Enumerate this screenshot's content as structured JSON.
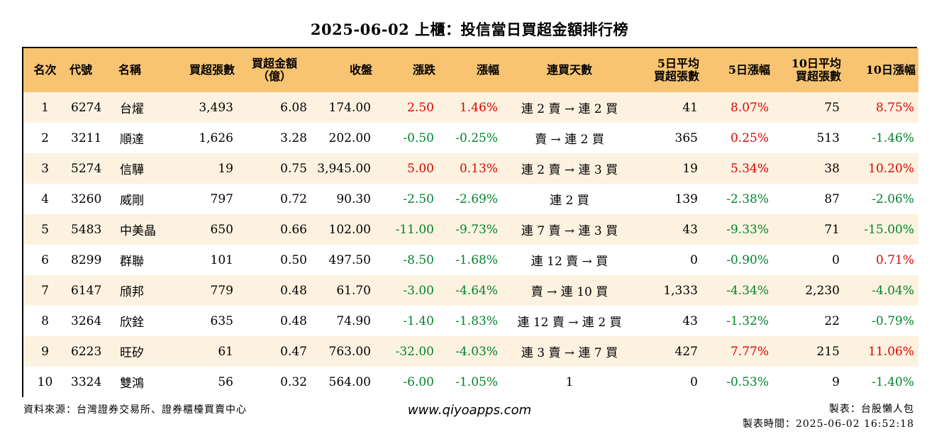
{
  "title": "2025-06-02 上櫃：投信當日買超金額排行榜",
  "headers": {
    "rank": "名次",
    "code": "代號",
    "name": "名稱",
    "net_shares": "買超張數",
    "net_amount_1": "買超金額",
    "net_amount_2": "（億）",
    "close": "收盤",
    "change": "漲跌",
    "pct": "漲幅",
    "streak": "連買天數",
    "avg5_1": "5日平均",
    "avg5_2": "買超張數",
    "pct5": "5日漲幅",
    "avg10_1": "10日平均",
    "avg10_2": "買超張數",
    "pct10": "10日漲幅"
  },
  "colors": {
    "header_bg": "#f8c471",
    "odd_row_bg": "#fdf2e0",
    "up": "#e00000",
    "down": "#00852d"
  },
  "rows": [
    {
      "rank": "1",
      "code": "6274",
      "name": "台燿",
      "shares": "3,493",
      "amount": "6.08",
      "close": "174.00",
      "change": "2.50",
      "pct": "1.46%",
      "streak": "連 2 賣 → 連 2 買",
      "avg5": "41",
      "pct5": "8.07%",
      "avg10": "75",
      "pct10": "8.75%"
    },
    {
      "rank": "2",
      "code": "3211",
      "name": "順達",
      "shares": "1,626",
      "amount": "3.28",
      "close": "202.00",
      "change": "-0.50",
      "pct": "-0.25%",
      "streak": "賣 → 連 2 買",
      "avg5": "365",
      "pct5": "0.25%",
      "avg10": "513",
      "pct10": "-1.46%"
    },
    {
      "rank": "3",
      "code": "5274",
      "name": "信驊",
      "shares": "19",
      "amount": "0.75",
      "close": "3,945.00",
      "change": "5.00",
      "pct": "0.13%",
      "streak": "連 2 賣 → 連 3 買",
      "avg5": "19",
      "pct5": "5.34%",
      "avg10": "38",
      "pct10": "10.20%"
    },
    {
      "rank": "4",
      "code": "3260",
      "name": "威剛",
      "shares": "797",
      "amount": "0.72",
      "close": "90.30",
      "change": "-2.50",
      "pct": "-2.69%",
      "streak": "連 2 買",
      "avg5": "139",
      "pct5": "-2.38%",
      "avg10": "87",
      "pct10": "-2.06%"
    },
    {
      "rank": "5",
      "code": "5483",
      "name": "中美晶",
      "shares": "650",
      "amount": "0.66",
      "close": "102.00",
      "change": "-11.00",
      "pct": "-9.73%",
      "streak": "連 7 賣 → 連 3 買",
      "avg5": "43",
      "pct5": "-9.33%",
      "avg10": "71",
      "pct10": "-15.00%"
    },
    {
      "rank": "6",
      "code": "8299",
      "name": "群聯",
      "shares": "101",
      "amount": "0.50",
      "close": "497.50",
      "change": "-8.50",
      "pct": "-1.68%",
      "streak": "連 12 賣 → 買",
      "avg5": "0",
      "pct5": "-0.90%",
      "avg10": "0",
      "pct10": "0.71%"
    },
    {
      "rank": "7",
      "code": "6147",
      "name": "頎邦",
      "shares": "779",
      "amount": "0.48",
      "close": "61.70",
      "change": "-3.00",
      "pct": "-4.64%",
      "streak": "賣 → 連 10 買",
      "avg5": "1,333",
      "pct5": "-4.34%",
      "avg10": "2,230",
      "pct10": "-4.04%"
    },
    {
      "rank": "8",
      "code": "3264",
      "name": "欣銓",
      "shares": "635",
      "amount": "0.48",
      "close": "74.90",
      "change": "-1.40",
      "pct": "-1.83%",
      "streak": "連 12 賣 → 連 2 買",
      "avg5": "43",
      "pct5": "-1.32%",
      "avg10": "22",
      "pct10": "-0.79%"
    },
    {
      "rank": "9",
      "code": "6223",
      "name": "旺矽",
      "shares": "61",
      "amount": "0.47",
      "close": "763.00",
      "change": "-32.00",
      "pct": "-4.03%",
      "streak": "連 3 賣 → 連 7 買",
      "avg5": "427",
      "pct5": "7.77%",
      "avg10": "215",
      "pct10": "11.06%"
    },
    {
      "rank": "10",
      "code": "3324",
      "name": "雙鴻",
      "shares": "56",
      "amount": "0.32",
      "close": "564.00",
      "change": "-6.00",
      "pct": "-1.05%",
      "streak": "1",
      "avg5": "0",
      "pct5": "-0.53%",
      "avg10": "9",
      "pct10": "-1.40%"
    }
  ],
  "footer": {
    "source": "資料來源：台灣證券交易所、證券櫃檯買賣中心",
    "website": "www.qiyoapps.com",
    "maker": "製表：台股懶人包",
    "time": "製表時間：2025-06-02 16:52:18"
  }
}
